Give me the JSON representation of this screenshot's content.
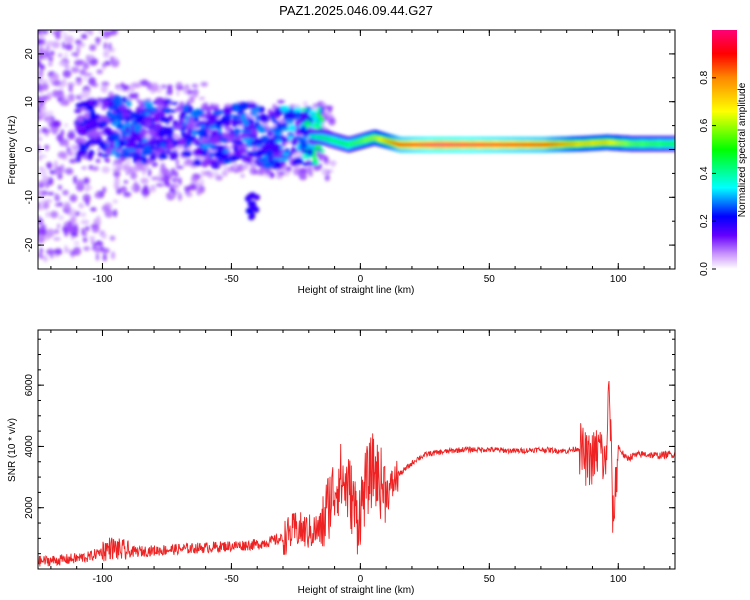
{
  "page_title": "PAZ1.2025.046.09.44.G27",
  "chart_data": [
    {
      "type": "heatmap",
      "title": "PAZ1.2025.046.09.44.G27",
      "xlabel": "Height of straight line (km)",
      "ylabel": "Frequency (Hz)",
      "xlim": [
        -125,
        122
      ],
      "ylim": [
        -25,
        25
      ],
      "x_ticks": [
        "-100",
        "-50",
        "0",
        "50",
        "100"
      ],
      "y_ticks": [
        "-20",
        "-10",
        "0",
        "10",
        "20"
      ],
      "colorbar": {
        "label": "Normalized spectral amplitude",
        "range": [
          0,
          1
        ],
        "ticks": [
          "0.0",
          "0.2",
          "0.4",
          "0.6",
          "0.8"
        ],
        "colors": [
          "#ffffff",
          "#cc99ff",
          "#6600ff",
          "#0000ff",
          "#00ffff",
          "#00ff00",
          "#ffff00",
          "#ff8800",
          "#ff0000",
          "#ff0077"
        ]
      },
      "ridge": {
        "x": [
          -105,
          -95,
          -85,
          -75,
          -65,
          -55,
          -45,
          -35,
          -25,
          -15,
          -5,
          5,
          15,
          30,
          50,
          70,
          85,
          95,
          105,
          122
        ],
        "freq": [
          4,
          5,
          3.5,
          4.5,
          3,
          2.5,
          4,
          2,
          3,
          2.5,
          1,
          2.5,
          1,
          1,
          1,
          1,
          1.2,
          1.5,
          1.2,
          1.2
        ],
        "peak_amplitude": [
          0.2,
          0.25,
          0.25,
          0.22,
          0.25,
          0.25,
          0.25,
          0.25,
          0.3,
          0.45,
          0.5,
          0.6,
          0.9,
          1.0,
          0.95,
          0.9,
          0.7,
          0.7,
          0.55,
          0.5
        ]
      }
    },
    {
      "type": "line",
      "xlabel": "Height of straight line (km)",
      "ylabel": "SNR (10 * v/v)",
      "xlim": [
        -125,
        122
      ],
      "ylim": [
        0,
        7800
      ],
      "x_ticks": [
        "-100",
        "-50",
        "0",
        "50",
        "100"
      ],
      "y_ticks": [
        "2000",
        "4000",
        "6000"
      ],
      "color": "#ee2222",
      "series": [
        {
          "x": [
            -125,
            -115,
            -105,
            -97,
            -90,
            -80,
            -70,
            -60,
            -50,
            -40,
            -30,
            -25,
            -20,
            -15,
            -12,
            -8,
            -4,
            -1,
            2,
            5,
            8,
            11,
            14,
            18,
            22,
            26,
            30,
            40,
            50,
            60,
            70,
            80,
            85,
            88,
            91,
            93,
            95,
            96.5,
            98,
            100,
            103,
            106,
            110,
            115,
            122
          ],
          "y": [
            250,
            300,
            400,
            700,
            550,
            600,
            650,
            700,
            750,
            800,
            1000,
            1300,
            1200,
            1300,
            2200,
            3000,
            2500,
            1600,
            2700,
            3300,
            2800,
            2500,
            3000,
            3300,
            3600,
            3750,
            3800,
            3900,
            3900,
            3850,
            3900,
            3850,
            3950,
            3500,
            3700,
            4000,
            3200,
            6000,
            1500,
            4000,
            3600,
            3700,
            3750,
            3700,
            3750
          ]
        }
      ]
    }
  ]
}
